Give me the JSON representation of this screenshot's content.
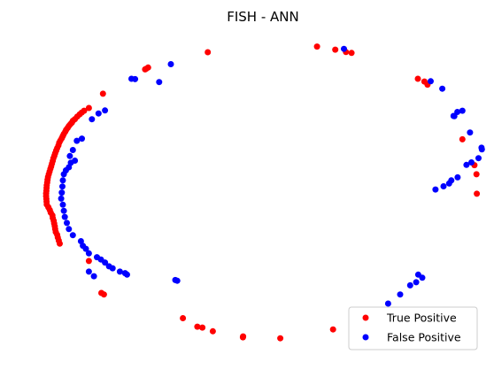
{
  "chart_data": {
    "type": "scatter",
    "title": "FISH - ANN",
    "xlabel": "",
    "ylabel": "",
    "axes_visible": false,
    "grid": false,
    "xlim": [
      -1.1,
      1.1
    ],
    "ylim": [
      -1.1,
      1.1
    ],
    "legend_position": "lower-right",
    "series": [
      {
        "name": "True Positive",
        "color": "#ff0000",
        "points": [
          [
            -0.268,
            0.943
          ],
          [
            0.276,
            0.98
          ],
          [
            0.367,
            0.96
          ],
          [
            0.42,
            0.944
          ],
          [
            0.448,
            0.938
          ],
          [
            0.778,
            0.768
          ],
          [
            0.811,
            0.75
          ],
          [
            0.826,
            0.73
          ],
          [
            1.0,
            0.37
          ],
          [
            -0.565,
            0.842
          ],
          [
            -0.575,
            0.834
          ],
          [
            -0.58,
            0.83
          ],
          [
            -0.79,
            0.67
          ],
          [
            -0.86,
            0.576
          ],
          [
            -0.884,
            0.558
          ],
          [
            -0.896,
            0.546
          ],
          [
            -0.906,
            0.534
          ],
          [
            -0.918,
            0.52
          ],
          [
            -0.93,
            0.503
          ],
          [
            -0.94,
            0.492
          ],
          [
            -0.945,
            0.48
          ],
          [
            -0.952,
            0.47
          ],
          [
            -0.96,
            0.458
          ],
          [
            -0.966,
            0.445
          ],
          [
            -0.973,
            0.433
          ],
          [
            -0.978,
            0.42
          ],
          [
            -0.985,
            0.405
          ],
          [
            -0.99,
            0.392
          ],
          [
            -0.995,
            0.378
          ],
          [
            -1.002,
            0.362
          ],
          [
            -1.008,
            0.348
          ],
          [
            -1.012,
            0.33
          ],
          [
            -1.018,
            0.312
          ],
          [
            -1.023,
            0.296
          ],
          [
            -1.028,
            0.278
          ],
          [
            -1.032,
            0.262
          ],
          [
            -1.037,
            0.245
          ],
          [
            -1.04,
            0.228
          ],
          [
            -1.044,
            0.21
          ],
          [
            -1.048,
            0.192
          ],
          [
            -1.052,
            0.176
          ],
          [
            -1.056,
            0.158
          ],
          [
            -1.06,
            0.14
          ],
          [
            -1.064,
            0.122
          ],
          [
            -1.066,
            0.104
          ],
          [
            -1.068,
            0.086
          ],
          [
            -1.07,
            0.068
          ],
          [
            -1.071,
            0.05
          ],
          [
            -1.072,
            0.032
          ],
          [
            -1.073,
            0.014
          ],
          [
            -1.073,
            -0.004
          ],
          [
            -1.072,
            -0.022
          ],
          [
            -1.071,
            -0.04
          ],
          [
            -1.07,
            -0.058
          ],
          [
            -1.062,
            -0.076
          ],
          [
            -1.055,
            -0.094
          ],
          [
            -1.05,
            -0.112
          ],
          [
            -1.042,
            -0.13
          ],
          [
            -1.04,
            -0.148
          ],
          [
            -1.035,
            -0.166
          ],
          [
            -1.033,
            -0.184
          ],
          [
            -1.03,
            -0.202
          ],
          [
            -1.028,
            -0.22
          ],
          [
            -1.025,
            -0.24
          ],
          [
            -1.018,
            -0.258
          ],
          [
            -1.015,
            -0.276
          ],
          [
            -1.01,
            -0.296
          ],
          [
            -1.005,
            -0.316
          ],
          [
            -0.86,
            -0.43
          ],
          [
            -0.798,
            -0.64
          ],
          [
            -0.785,
            -0.65
          ],
          [
            -0.392,
            -0.806
          ],
          [
            -0.32,
            -0.862
          ],
          [
            -0.295,
            -0.868
          ],
          [
            -0.243,
            -0.892
          ],
          [
            -0.093,
            -0.932
          ],
          [
            -0.092,
            -0.926
          ],
          [
            0.093,
            -0.938
          ],
          [
            0.356,
            -0.88
          ],
          [
            1.072,
            0.012
          ],
          [
            1.07,
            0.14
          ],
          [
            1.06,
            0.2
          ]
        ]
      },
      {
        "name": "False Positive",
        "color": "#0000ff",
        "points": [
          [
            -0.452,
            0.864
          ],
          [
            -0.648,
            0.768
          ],
          [
            -0.63,
            0.766
          ],
          [
            -0.51,
            0.747
          ],
          [
            0.41,
            0.965
          ],
          [
            0.842,
            0.752
          ],
          [
            0.9,
            0.703
          ],
          [
            0.975,
            0.55
          ],
          [
            1.0,
            0.558
          ],
          [
            0.956,
            0.524
          ],
          [
            0.96,
            0.522
          ],
          [
            1.038,
            0.415
          ],
          [
            1.095,
            0.315
          ],
          [
            1.097,
            0.304
          ],
          [
            1.08,
            0.246
          ],
          [
            1.045,
            0.218
          ],
          [
            1.02,
            0.202
          ],
          [
            0.976,
            0.12
          ],
          [
            0.945,
            0.1
          ],
          [
            0.934,
            0.08
          ],
          [
            0.906,
            0.061
          ],
          [
            0.866,
            0.04
          ],
          [
            -0.78,
            0.56
          ],
          [
            -0.812,
            0.54
          ],
          [
            -0.845,
            0.502
          ],
          [
            -0.895,
            0.375
          ],
          [
            -0.92,
            0.36
          ],
          [
            -0.94,
            0.3
          ],
          [
            -0.955,
            0.26
          ],
          [
            -0.93,
            0.23
          ],
          [
            -0.95,
            0.216
          ],
          [
            -0.96,
            0.186
          ],
          [
            -0.975,
            0.166
          ],
          [
            -0.985,
            0.14
          ],
          [
            -0.99,
            0.1
          ],
          [
            -0.992,
            0.06
          ],
          [
            -0.995,
            0.02
          ],
          [
            -0.998,
            -0.02
          ],
          [
            -0.99,
            -0.06
          ],
          [
            -0.985,
            -0.1
          ],
          [
            -0.98,
            -0.14
          ],
          [
            -0.97,
            -0.18
          ],
          [
            -0.96,
            -0.22
          ],
          [
            -0.94,
            -0.26
          ],
          [
            -0.9,
            -0.3
          ],
          [
            -0.89,
            -0.33
          ],
          [
            -0.875,
            -0.35
          ],
          [
            -0.86,
            -0.38
          ],
          [
            -0.82,
            -0.405
          ],
          [
            -0.8,
            -0.42
          ],
          [
            -0.78,
            -0.44
          ],
          [
            -0.76,
            -0.465
          ],
          [
            -0.742,
            -0.478
          ],
          [
            -0.706,
            -0.5
          ],
          [
            -0.68,
            -0.51
          ],
          [
            -0.67,
            -0.52
          ],
          [
            0.78,
            -0.52
          ],
          [
            0.8,
            -0.54
          ],
          [
            0.77,
            -0.57
          ],
          [
            0.74,
            -0.59
          ],
          [
            0.69,
            -0.65
          ],
          [
            0.63,
            -0.71
          ],
          [
            -0.86,
            -0.5
          ],
          [
            -0.835,
            -0.53
          ],
          [
            -0.43,
            -0.555
          ],
          [
            -0.42,
            -0.56
          ]
        ]
      }
    ]
  }
}
